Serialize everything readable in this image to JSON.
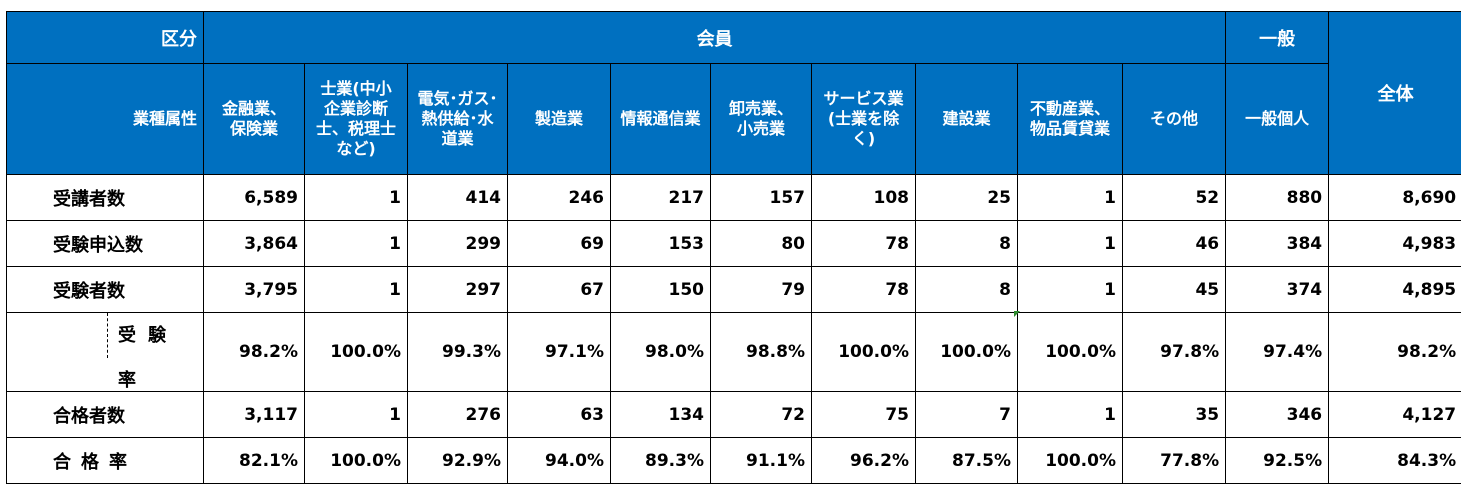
{
  "header": {
    "category_label": "区分",
    "member_label": "会員",
    "general_label": "一般",
    "total_label": "全体",
    "industry_attr_label": "業種属性",
    "columns": [
      "金融業、\n保険業",
      "士業(中小\n企業診断\n士、税理士\nなど)",
      "電気･ガス･\n熱供給･水\n道業",
      "製造業",
      "情報通信業",
      "卸売業、\n小売業",
      "サービス業\n(士業を除\nく)",
      "建設業",
      "不動産業、\n物品賃貸業",
      "その他",
      "一般個人"
    ]
  },
  "rows": [
    {
      "label": "受講者数",
      "values": [
        "6,589",
        "1",
        "414",
        "246",
        "217",
        "157",
        "108",
        "25",
        "1",
        "52",
        "880",
        "8,690"
      ]
    },
    {
      "label": "受験申込数",
      "values": [
        "3,864",
        "1",
        "299",
        "69",
        "153",
        "80",
        "78",
        "8",
        "1",
        "46",
        "384",
        "4,983"
      ]
    },
    {
      "label": "受験者数",
      "values": [
        "3,795",
        "1",
        "297",
        "67",
        "150",
        "79",
        "78",
        "8",
        "1",
        "45",
        "374",
        "4,895"
      ]
    },
    {
      "label": "受験率",
      "values": [
        "98.2%",
        "100.0%",
        "99.3%",
        "97.1%",
        "98.0%",
        "98.8%",
        "100.0%",
        "100.0%",
        "100.0%",
        "97.8%",
        "97.4%",
        "98.2%"
      ]
    },
    {
      "label": "合格者数",
      "values": [
        "3,117",
        "1",
        "276",
        "63",
        "134",
        "72",
        "75",
        "7",
        "1",
        "35",
        "346",
        "4,127"
      ]
    },
    {
      "label": "合格率",
      "values": [
        "82.1%",
        "100.0%",
        "92.9%",
        "94.0%",
        "89.3%",
        "91.1%",
        "96.2%",
        "87.5%",
        "100.0%",
        "77.8%",
        "92.5%",
        "84.3%"
      ]
    }
  ],
  "colors": {
    "header_bg": "#0070c0",
    "header_text": "#ffffff"
  }
}
